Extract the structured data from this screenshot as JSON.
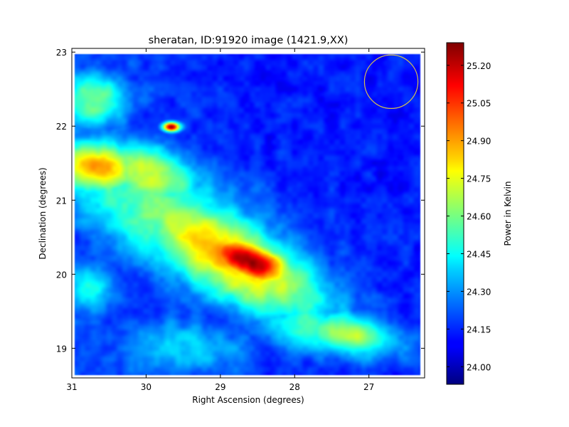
{
  "chart_data": {
    "type": "heatmap",
    "title": "sheratan, ID:91920 image (1421.9,XX)",
    "xlabel": "Right Ascension (degrees)",
    "ylabel": "Declination (degrees)",
    "xlim": [
      31.0,
      26.25
    ],
    "ylim": [
      18.6,
      23.05
    ],
    "x_inverted": true,
    "xticks": [
      31,
      30,
      29,
      28,
      27
    ],
    "yticks": [
      19,
      20,
      21,
      22,
      23
    ],
    "colorbar": {
      "label": "Power in Kelvin",
      "range": [
        23.93,
        25.29
      ],
      "ticks": [
        24.0,
        24.15,
        24.3,
        24.45,
        24.6,
        24.75,
        24.9,
        25.05,
        25.2
      ],
      "tick_labels": [
        "24.00",
        "24.15",
        "24.30",
        "24.45",
        "24.60",
        "24.75",
        "24.90",
        "25.05",
        "25.20"
      ],
      "colormap": "jet"
    },
    "background_level": 24.13,
    "features": [
      {
        "type": "peak",
        "ra": 28.62,
        "dec": 20.18,
        "power": 25.28,
        "sigma_ra": 0.45,
        "sigma_dec": 0.2,
        "angle_deg": -22
      },
      {
        "type": "ridge",
        "ra": 28.9,
        "dec": 20.25,
        "power": 24.9,
        "sigma_ra": 1.05,
        "sigma_dec": 0.38,
        "angle_deg": -30
      },
      {
        "type": "ridge",
        "ra": 29.6,
        "dec": 20.7,
        "power": 24.6,
        "sigma_ra": 1.4,
        "sigma_dec": 0.5,
        "angle_deg": -30
      },
      {
        "type": "blob",
        "ra": 30.65,
        "dec": 21.45,
        "power": 24.9,
        "sigma_ra": 0.45,
        "sigma_dec": 0.25,
        "angle_deg": -8
      },
      {
        "type": "blob",
        "ra": 30.0,
        "dec": 21.35,
        "power": 24.72,
        "sigma_ra": 0.55,
        "sigma_dec": 0.28,
        "angle_deg": -20
      },
      {
        "type": "blob",
        "ra": 30.7,
        "dec": 22.35,
        "power": 24.62,
        "sigma_ra": 0.35,
        "sigma_dec": 0.25,
        "angle_deg": 0
      },
      {
        "type": "point",
        "ra": 29.66,
        "dec": 21.99,
        "power": 25.22,
        "sigma_ra": 0.08,
        "sigma_dec": 0.045,
        "angle_deg": 0
      },
      {
        "type": "blob",
        "ra": 27.3,
        "dec": 19.2,
        "power": 24.7,
        "sigma_ra": 0.5,
        "sigma_dec": 0.2,
        "angle_deg": -10
      },
      {
        "type": "blob",
        "ra": 27.8,
        "dec": 19.3,
        "power": 24.55,
        "sigma_ra": 0.55,
        "sigma_dec": 0.25,
        "angle_deg": -10
      },
      {
        "type": "blob",
        "ra": 30.75,
        "dec": 19.8,
        "power": 24.45,
        "sigma_ra": 0.28,
        "sigma_dec": 0.25,
        "angle_deg": 0
      },
      {
        "type": "blob",
        "ra": 29.5,
        "dec": 19.0,
        "power": 24.38,
        "sigma_ra": 0.7,
        "sigma_dec": 0.3,
        "angle_deg": 0
      }
    ],
    "beam_circle": {
      "ra": 26.7,
      "dec": 22.6,
      "radius_deg": 0.36,
      "color": "#d4c050"
    }
  }
}
